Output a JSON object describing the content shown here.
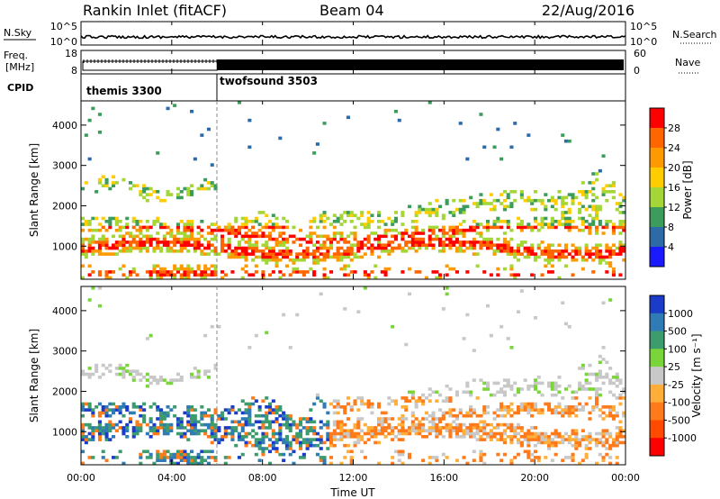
{
  "header": {
    "station": "Rankin Inlet (fitACF)",
    "beam": "Beam 04",
    "date": "22/Aug/2016"
  },
  "noise_panel": {
    "left_label": "N.Sky",
    "right_label": "N.Search",
    "left_ticks": [
      "10^5",
      "10^0"
    ],
    "right_ticks": [
      "10^5",
      "10^0"
    ]
  },
  "freq_panel": {
    "left_label_1": "Freq.",
    "left_label_2": "[MHz]",
    "right_label": "Nave",
    "left_ticks": [
      "18",
      "8"
    ],
    "right_ticks": [
      "60",
      "0"
    ]
  },
  "cpid_panel": {
    "label": "CPID",
    "segments": [
      {
        "name": "themis 3300",
        "start_hour": 0
      },
      {
        "name": "twofsound 3503",
        "start_hour": 6
      }
    ]
  },
  "chart_data": [
    {
      "type": "heatmap",
      "quantity": "power",
      "ylabel": "Slant Range [km]",
      "ylim": [
        180,
        4600
      ],
      "yticks": [
        1000,
        2000,
        3000,
        4000
      ],
      "xlim": [
        0,
        24
      ],
      "colorbar_label": "Power [dB]",
      "colorbar_ticks": [
        "28",
        "24",
        "20",
        "16",
        "12",
        "8",
        "4"
      ],
      "colorbar_colors": [
        "#ff0000",
        "#ff6600",
        "#ff9900",
        "#ffcc00",
        "#a3d636",
        "#3c9c5c",
        "#2d6aa8",
        "#1a1aff"
      ]
    },
    {
      "type": "heatmap",
      "quantity": "velocity",
      "ylabel": "Slant Range [km]",
      "ylim": [
        180,
        4600
      ],
      "yticks": [
        1000,
        2000,
        3000,
        4000
      ],
      "xlim": [
        0,
        24
      ],
      "xlabel": "Time UT",
      "xticks": [
        "00:00",
        "04:00",
        "08:00",
        "12:00",
        "16:00",
        "20:00",
        "00:00"
      ],
      "colorbar_label": "Velocity [m s⁻¹]",
      "colorbar_ticks": [
        "1000",
        "500",
        "100",
        "25",
        "-25",
        "-100",
        "-500",
        "-1000"
      ],
      "colorbar_colors": [
        "#1a3cc8",
        "#2e7bb5",
        "#3c9c6e",
        "#7ad53a",
        "#c8c8c8",
        "#ffae3a",
        "#ff7a1a",
        "#ff4a00",
        "#ff0000"
      ]
    }
  ]
}
